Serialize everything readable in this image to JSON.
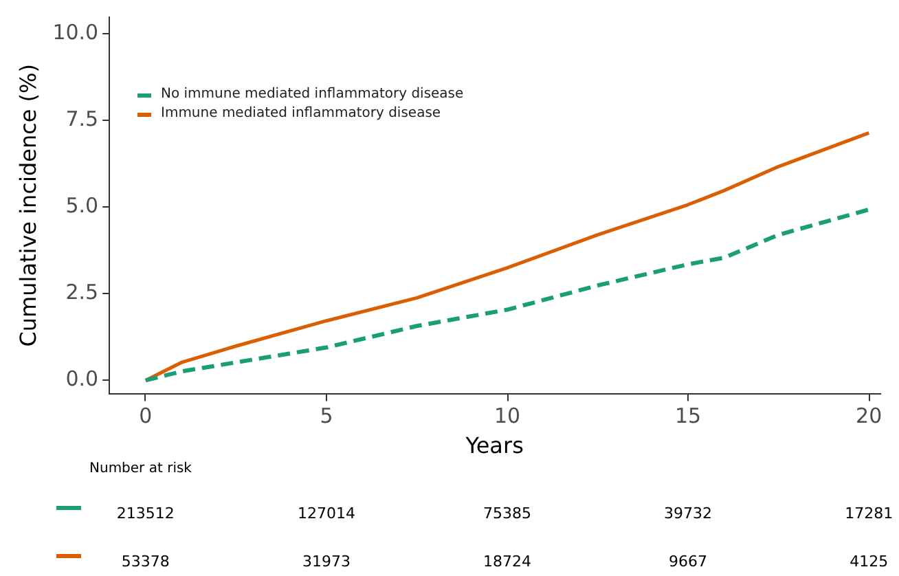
{
  "chart_data": {
    "type": "line",
    "xlabel": "Years",
    "ylabel": "Cumulative incidence (%)",
    "xlim": [
      -1,
      20.3
    ],
    "ylim": [
      -0.4,
      10.5
    ],
    "xticks": [
      0,
      5,
      10,
      15,
      20
    ],
    "yticks": [
      {
        "value": 0,
        "label": "0.0"
      },
      {
        "value": 2.5,
        "label": "2.5"
      },
      {
        "value": 5,
        "label": "5.0"
      },
      {
        "value": 7.5,
        "label": "7.5"
      },
      {
        "value": 10,
        "label": "10.0"
      }
    ],
    "grid": false,
    "legend": "top left",
    "marker": "none",
    "series": [
      {
        "name": "No immune mediated inflammatory disease",
        "color": "#1b9e77",
        "line_style": "dashed",
        "x": [
          0,
          1,
          2.5,
          5,
          7.5,
          10,
          12.5,
          15,
          16,
          17.5,
          20
        ],
        "values": [
          0,
          0.26,
          0.52,
          0.95,
          1.57,
          2.04,
          2.74,
          3.35,
          3.54,
          4.2,
          4.93
        ]
      },
      {
        "name": "Immune mediated inflammatory disease",
        "color": "#d95f02",
        "line_style": "solid",
        "x": [
          0,
          1,
          2.5,
          5,
          7.5,
          10,
          12.5,
          15,
          16,
          17.5,
          20
        ],
        "values": [
          0,
          0.52,
          0.99,
          1.72,
          2.38,
          3.25,
          4.2,
          5.07,
          5.48,
          6.17,
          7.14
        ]
      }
    ],
    "annotations": [
      "Number at risk",
      "213512",
      "127014",
      "75385",
      "39732",
      "17281",
      "53378",
      "31973",
      "18724",
      "9667",
      "4125"
    ]
  }
}
